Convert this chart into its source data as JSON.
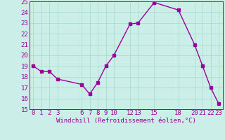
{
  "x": [
    0,
    1,
    2,
    3,
    6,
    7,
    8,
    9,
    10,
    12,
    13,
    15,
    18,
    20,
    21,
    22,
    23
  ],
  "y": [
    19.0,
    18.5,
    18.5,
    17.8,
    17.3,
    16.4,
    17.5,
    19.0,
    20.0,
    22.9,
    23.0,
    24.9,
    24.2,
    21.0,
    19.0,
    17.0,
    15.5
  ],
  "line_color": "#990099",
  "marker": "s",
  "marker_size": 2.5,
  "bg_color": "#cceee8",
  "grid_color": "#aaddcc",
  "xlabel": "Windchill (Refroidissement éolien,°C)",
  "xlim": [
    -0.5,
    23.5
  ],
  "ylim": [
    15,
    25
  ],
  "yticks": [
    15,
    16,
    17,
    18,
    19,
    20,
    21,
    22,
    23,
    24,
    25
  ],
  "xticks": [
    0,
    1,
    2,
    3,
    6,
    7,
    8,
    9,
    10,
    12,
    13,
    15,
    18,
    20,
    21,
    22,
    23
  ],
  "xlabel_fontsize": 6.5,
  "tick_fontsize": 6.5,
  "line_width": 1.0
}
